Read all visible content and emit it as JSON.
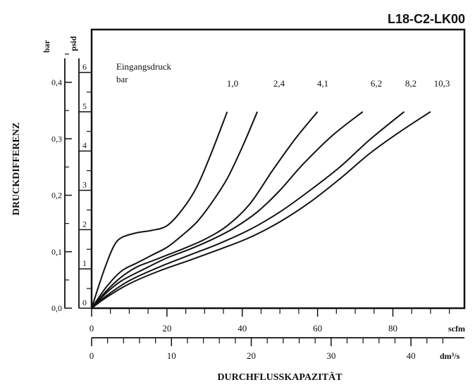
{
  "chart_data": {
    "type": "line",
    "title": "L18-C2-LK00",
    "ylabel": "DRUCKDIFFERENZ",
    "xlabel": "DURCHFLUSSKAPAZITÄT",
    "y_axis_bar": {
      "unit": "bar",
      "range": [
        0,
        0.45
      ],
      "ticks": [
        {
          "value": 0,
          "label": "0,0"
        },
        {
          "value": 0.1,
          "label": "0,1"
        },
        {
          "value": 0.2,
          "label": "0,2"
        },
        {
          "value": 0.3,
          "label": "0,3"
        },
        {
          "value": 0.4,
          "label": "0,4"
        }
      ]
    },
    "y_axis_psid": {
      "unit": "psid",
      "range": [
        0,
        6.5
      ],
      "ticks": [
        {
          "value": 0,
          "label": "0"
        },
        {
          "value": 1,
          "label": "1"
        },
        {
          "value": 2,
          "label": "2"
        },
        {
          "value": 3,
          "label": "3"
        },
        {
          "value": 4,
          "label": "4"
        },
        {
          "value": 5,
          "label": "5"
        },
        {
          "value": 6,
          "label": "6"
        }
      ]
    },
    "x_axis_scfm": {
      "unit": "scfm",
      "range": [
        0,
        99
      ],
      "ticks": [
        {
          "value": 0,
          "label": "0"
        },
        {
          "value": 20,
          "label": "20"
        },
        {
          "value": 40,
          "label": "40"
        },
        {
          "value": 60,
          "label": "60"
        },
        {
          "value": 80,
          "label": "80"
        }
      ]
    },
    "x_axis_dm3s": {
      "unit": "dm³/s",
      "range": [
        0,
        46.7
      ],
      "ticks": [
        {
          "value": 0,
          "label": "0"
        },
        {
          "value": 10,
          "label": "10"
        },
        {
          "value": 20,
          "label": "20"
        },
        {
          "value": 30,
          "label": "30"
        },
        {
          "value": 40,
          "label": "40"
        }
      ]
    },
    "legend_title": [
      "Eingangsdruck",
      "bar"
    ],
    "series": [
      {
        "name": "1,0",
        "points": [
          [
            0,
            0
          ],
          [
            2,
            0.6
          ],
          [
            4,
            1.15
          ],
          [
            6,
            1.6
          ],
          [
            8,
            1.8
          ],
          [
            12,
            1.92
          ],
          [
            16,
            1.98
          ],
          [
            20,
            2.1
          ],
          [
            24,
            2.5
          ],
          [
            28,
            3.1
          ],
          [
            32,
            4.0
          ],
          [
            36,
            5.0
          ]
        ]
      },
      {
        "name": "2,4",
        "points": [
          [
            0,
            0
          ],
          [
            4,
            0.55
          ],
          [
            8,
            0.95
          ],
          [
            12,
            1.15
          ],
          [
            16,
            1.35
          ],
          [
            20,
            1.55
          ],
          [
            24,
            1.85
          ],
          [
            28,
            2.2
          ],
          [
            32,
            2.7
          ],
          [
            36,
            3.3
          ],
          [
            40,
            4.1
          ],
          [
            44,
            5.0
          ]
        ]
      },
      {
        "name": "4,1",
        "points": [
          [
            0,
            0
          ],
          [
            4,
            0.45
          ],
          [
            8,
            0.8
          ],
          [
            12,
            1.05
          ],
          [
            16,
            1.2
          ],
          [
            20,
            1.35
          ],
          [
            24,
            1.5
          ],
          [
            30,
            1.75
          ],
          [
            36,
            2.1
          ],
          [
            42,
            2.65
          ],
          [
            48,
            3.5
          ],
          [
            54,
            4.3
          ],
          [
            60,
            5.0
          ]
        ]
      },
      {
        "name": "6,2",
        "points": [
          [
            0,
            0
          ],
          [
            4,
            0.4
          ],
          [
            8,
            0.7
          ],
          [
            14,
            1.0
          ],
          [
            20,
            1.28
          ],
          [
            26,
            1.5
          ],
          [
            32,
            1.75
          ],
          [
            38,
            2.05
          ],
          [
            44,
            2.45
          ],
          [
            50,
            3.0
          ],
          [
            56,
            3.65
          ],
          [
            64,
            4.4
          ],
          [
            72,
            5.0
          ]
        ]
      },
      {
        "name": "8,2",
        "points": [
          [
            0,
            0
          ],
          [
            4,
            0.32
          ],
          [
            10,
            0.7
          ],
          [
            18,
            1.05
          ],
          [
            26,
            1.35
          ],
          [
            34,
            1.65
          ],
          [
            42,
            2.0
          ],
          [
            50,
            2.45
          ],
          [
            58,
            3.0
          ],
          [
            66,
            3.6
          ],
          [
            74,
            4.3
          ],
          [
            83,
            5.0
          ]
        ]
      },
      {
        "name": "10,3",
        "points": [
          [
            0,
            0
          ],
          [
            4,
            0.28
          ],
          [
            10,
            0.62
          ],
          [
            18,
            0.95
          ],
          [
            26,
            1.22
          ],
          [
            34,
            1.5
          ],
          [
            42,
            1.8
          ],
          [
            50,
            2.2
          ],
          [
            58,
            2.7
          ],
          [
            66,
            3.3
          ],
          [
            74,
            3.95
          ],
          [
            82,
            4.5
          ],
          [
            90,
            5.0
          ]
        ]
      }
    ]
  }
}
